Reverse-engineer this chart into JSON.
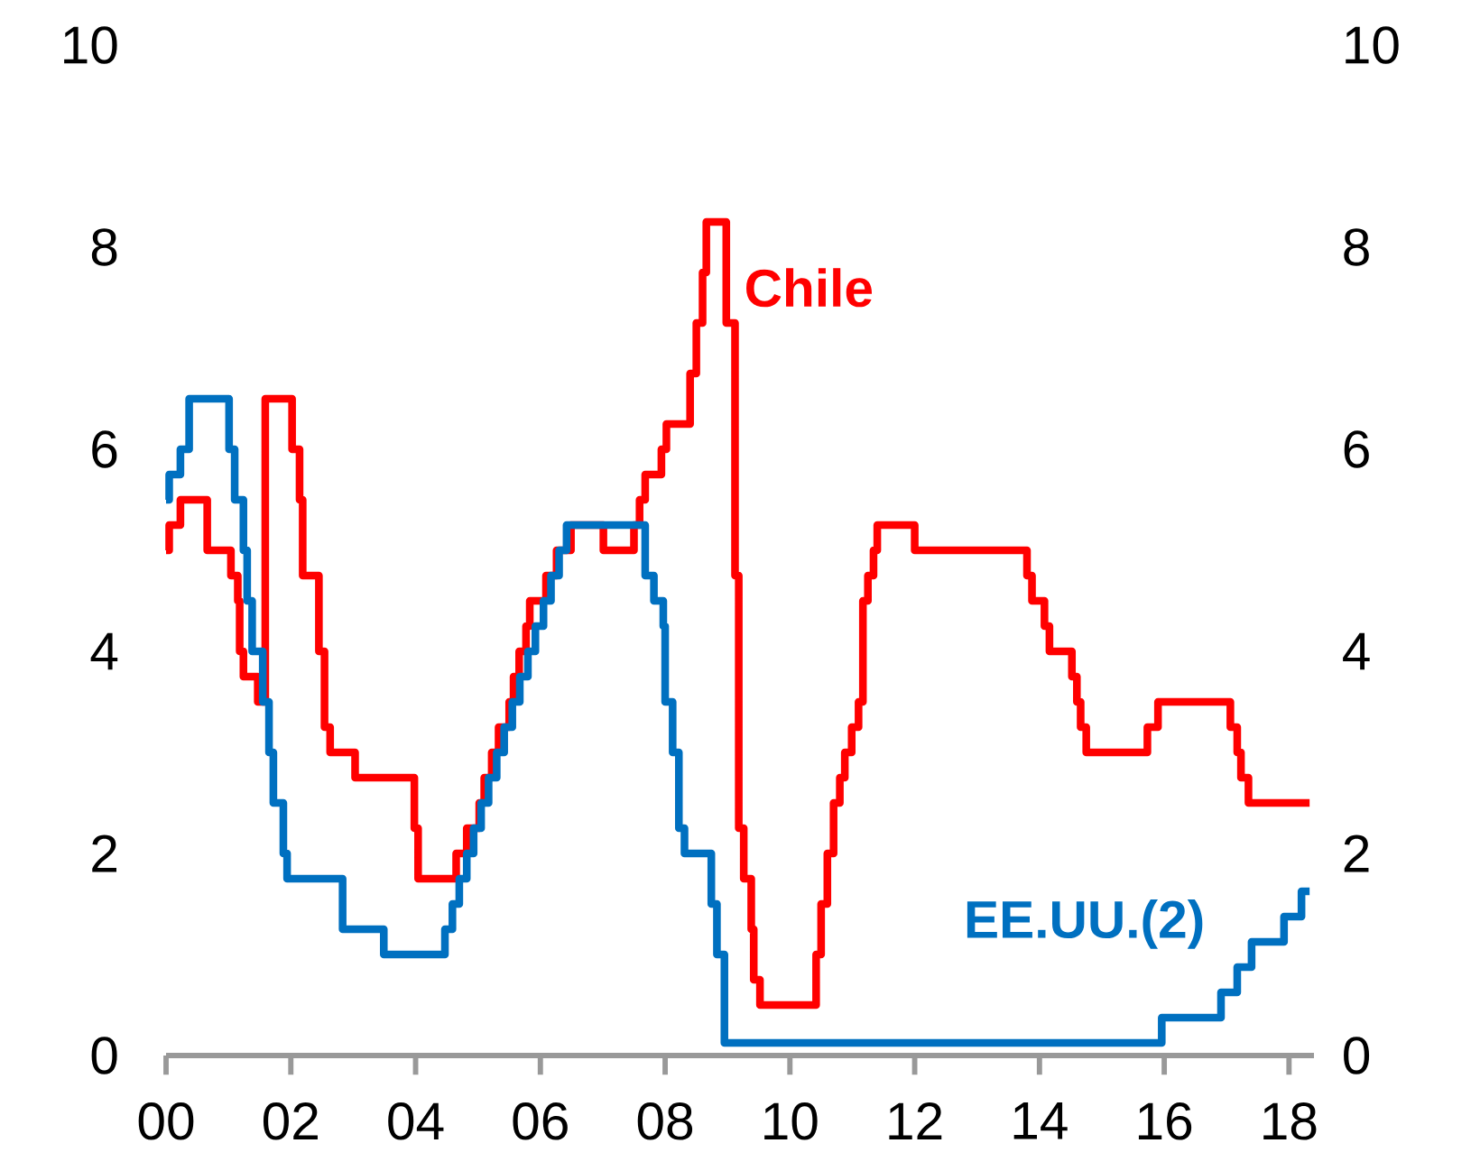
{
  "chart_data": {
    "type": "step",
    "xlim": [
      0,
      18.4
    ],
    "ylim": [
      0,
      10
    ],
    "y2lim": [
      0,
      10
    ],
    "xticks": [
      {
        "value": 0,
        "label": "00"
      },
      {
        "value": 2,
        "label": "02"
      },
      {
        "value": 4,
        "label": "04"
      },
      {
        "value": 6,
        "label": "06"
      },
      {
        "value": 8,
        "label": "08"
      },
      {
        "value": 10,
        "label": "10"
      },
      {
        "value": 12,
        "label": "12"
      },
      {
        "value": 14,
        "label": "14"
      },
      {
        "value": 16,
        "label": "16"
      },
      {
        "value": 18,
        "label": "18"
      }
    ],
    "yticks": [
      0,
      2,
      4,
      6,
      8,
      10
    ],
    "y2ticks": [
      0,
      2,
      4,
      6,
      8,
      10
    ],
    "grid": false,
    "series": [
      {
        "name": "Chile",
        "color": "#ff0000",
        "x": [
          0,
          0.05,
          0.23,
          0.66,
          1.04,
          1.15,
          1.18,
          1.24,
          1.47,
          1.59,
          2.02,
          2.14,
          2.19,
          2.45,
          2.54,
          2.63,
          3.03,
          3.98,
          4.04,
          4.65,
          4.82,
          5.02,
          5.1,
          5.22,
          5.33,
          5.5,
          5.57,
          5.66,
          5.77,
          5.83,
          6.09,
          6.26,
          6.49,
          7.01,
          7.5,
          7.59,
          7.68,
          7.94,
          8.02,
          8.4,
          8.5,
          8.6,
          8.66,
          8.98,
          9.12,
          9.18,
          9.26,
          9.38,
          9.42,
          9.52,
          10.42,
          10.5,
          10.6,
          10.7,
          10.8,
          10.88,
          10.99,
          11.1,
          11.17,
          11.25,
          11.34,
          11.4,
          12.0,
          13.8,
          13.88,
          14.08,
          14.16,
          14.52,
          14.6,
          14.66,
          14.75,
          15.73,
          15.9,
          17.06,
          17.17,
          17.23,
          17.35,
          18.33
        ],
        "values": [
          5.0,
          5.25,
          5.5,
          5.0,
          4.75,
          4.5,
          4.0,
          3.75,
          3.5,
          6.5,
          6.0,
          5.5,
          4.75,
          4.0,
          3.25,
          3.0,
          2.75,
          2.25,
          1.75,
          2.0,
          2.25,
          2.5,
          2.75,
          3.0,
          3.25,
          3.5,
          3.75,
          4.0,
          4.25,
          4.5,
          4.75,
          5.0,
          5.25,
          5.0,
          5.25,
          5.5,
          5.75,
          6.0,
          6.25,
          6.75,
          7.25,
          7.75,
          8.25,
          7.25,
          4.75,
          2.25,
          1.75,
          1.25,
          0.75,
          0.5,
          1.0,
          1.5,
          2.0,
          2.5,
          2.75,
          3.0,
          3.25,
          3.5,
          4.5,
          4.75,
          5.0,
          5.25,
          5.0,
          4.75,
          4.5,
          4.25,
          4.0,
          3.75,
          3.5,
          3.25,
          3.0,
          3.25,
          3.5,
          3.25,
          3.0,
          2.75,
          2.5,
          2.5
        ]
      },
      {
        "name": "EE.UU.(2)",
        "color": "#0070c0",
        "x": [
          0,
          0.05,
          0.23,
          0.37,
          1.01,
          1.1,
          1.24,
          1.3,
          1.38,
          1.55,
          1.65,
          1.72,
          1.88,
          1.94,
          2.83,
          3.49,
          4.47,
          4.59,
          4.7,
          4.82,
          4.93,
          5.05,
          5.17,
          5.3,
          5.42,
          5.55,
          5.67,
          5.8,
          5.92,
          6.05,
          6.17,
          6.3,
          6.42,
          7.68,
          7.82,
          7.97,
          8.0,
          8.12,
          8.22,
          8.31,
          8.74,
          8.83,
          8.95,
          15.96,
          16.91,
          17.17,
          17.4,
          17.92,
          18.2,
          18.33
        ],
        "values": [
          5.5,
          5.75,
          6.0,
          6.5,
          6.0,
          5.5,
          5.0,
          4.5,
          4.0,
          3.5,
          3.0,
          2.5,
          2.0,
          1.75,
          1.25,
          1.0,
          1.25,
          1.5,
          1.75,
          2.0,
          2.25,
          2.5,
          2.75,
          3.0,
          3.25,
          3.5,
          3.75,
          4.0,
          4.25,
          4.5,
          4.75,
          5.0,
          5.25,
          4.75,
          4.5,
          4.25,
          3.5,
          3.0,
          2.25,
          2.0,
          1.5,
          1.0,
          0.125,
          0.375,
          0.625,
          0.875,
          1.125,
          1.375,
          1.625,
          1.625
        ]
      }
    ]
  }
}
